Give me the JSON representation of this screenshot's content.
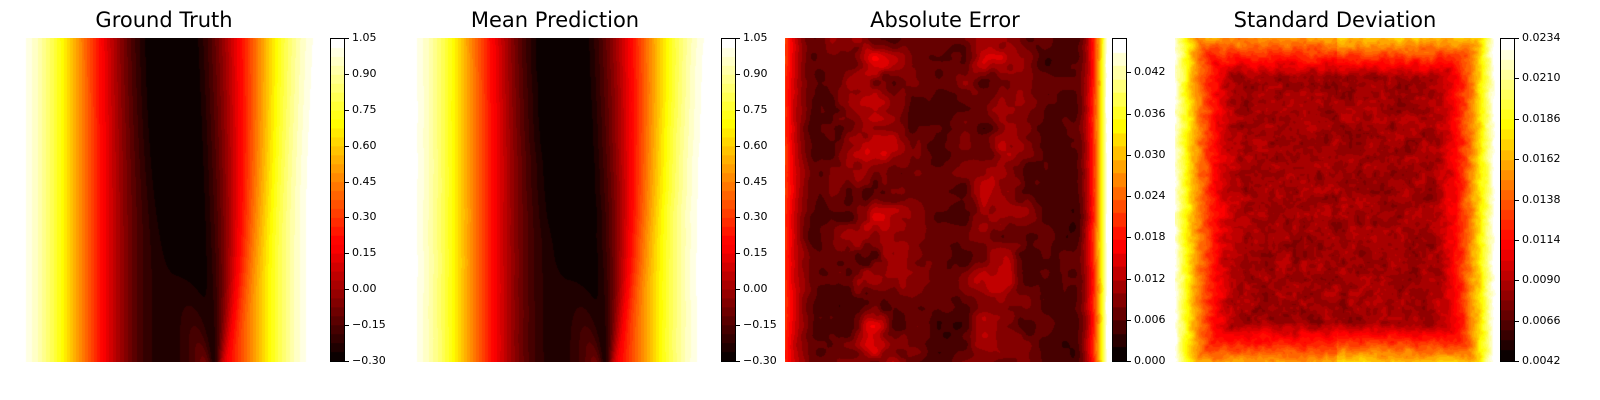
{
  "figure": {
    "colormap": "hot",
    "colors": {
      "background": "#ffffff",
      "black": "#0b0000",
      "red": "#ff0000",
      "yellow": "#ffff00",
      "white": "#ffffff"
    }
  },
  "chart_data": [
    {
      "type": "heatmap",
      "id": "ground_truth",
      "title": "Ground Truth",
      "colorbar": {
        "min": -0.3,
        "max": 1.05,
        "ticks": [
          "−0.30",
          "−0.15",
          "0.00",
          "0.15",
          "0.30",
          "0.45",
          "0.60",
          "0.75",
          "0.90",
          "1.05"
        ]
      },
      "levels": 36,
      "axes_visible": false
    },
    {
      "type": "heatmap",
      "id": "mean_prediction",
      "title": "Mean Prediction",
      "colorbar": {
        "min": -0.3,
        "max": 1.05,
        "ticks": [
          "−0.30",
          "−0.15",
          "0.00",
          "0.15",
          "0.30",
          "0.45",
          "0.60",
          "0.75",
          "0.90",
          "1.05"
        ]
      },
      "levels": 36,
      "axes_visible": false
    },
    {
      "type": "heatmap",
      "id": "absolute_error",
      "title": "Absolute Error",
      "colorbar": {
        "min": 0.0,
        "max": 0.047,
        "ticks": [
          "0.000",
          "0.006",
          "0.012",
          "0.018",
          "0.024",
          "0.030",
          "0.036",
          "0.042"
        ]
      },
      "levels": 24,
      "axes_visible": false
    },
    {
      "type": "heatmap",
      "id": "standard_deviation",
      "title": "Standard Deviation",
      "colorbar": {
        "min": 0.0042,
        "max": 0.0234,
        "ticks": [
          "0.0042",
          "0.0066",
          "0.0090",
          "0.0114",
          "0.0138",
          "0.0162",
          "0.0186",
          "0.0210",
          "0.0234"
        ]
      },
      "levels": 32,
      "axes_visible": false
    }
  ]
}
